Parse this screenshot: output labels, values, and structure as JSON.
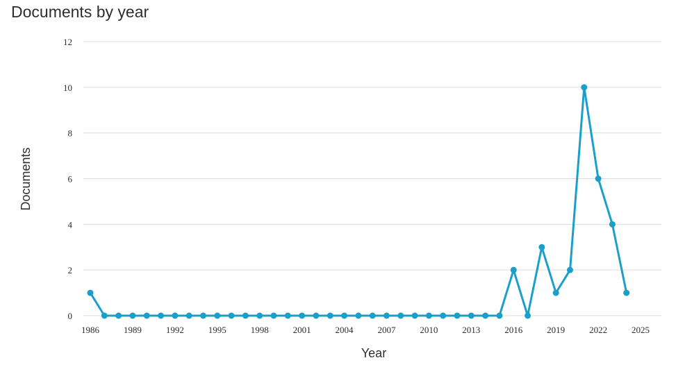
{
  "chart_data": {
    "type": "line",
    "title": "Documents by year",
    "xlabel": "Year",
    "ylabel": "Documents",
    "x": [
      1986,
      1987,
      1988,
      1989,
      1990,
      1991,
      1992,
      1993,
      1994,
      1995,
      1996,
      1997,
      1998,
      1999,
      2000,
      2001,
      2002,
      2003,
      2004,
      2005,
      2006,
      2007,
      2008,
      2009,
      2010,
      2011,
      2012,
      2013,
      2014,
      2015,
      2016,
      2017,
      2018,
      2019,
      2020,
      2021,
      2022,
      2023,
      2024
    ],
    "values": [
      1,
      0,
      0,
      0,
      0,
      0,
      0,
      0,
      0,
      0,
      0,
      0,
      0,
      0,
      0,
      0,
      0,
      0,
      0,
      0,
      0,
      0,
      0,
      0,
      0,
      0,
      0,
      0,
      0,
      0,
      2,
      0,
      3,
      1,
      2,
      10,
      6,
      4,
      1
    ],
    "xlim": [
      1986,
      2025
    ],
    "ylim": [
      0,
      12
    ],
    "x_ticks": [
      "1986",
      "1989",
      "1992",
      "1995",
      "1998",
      "2001",
      "2004",
      "2007",
      "2010",
      "2013",
      "2016",
      "2019",
      "2022",
      "2025"
    ],
    "y_ticks": [
      "0",
      "2",
      "4",
      "6",
      "8",
      "10",
      "12"
    ],
    "grid": true,
    "line_color": "#1a9fca"
  }
}
